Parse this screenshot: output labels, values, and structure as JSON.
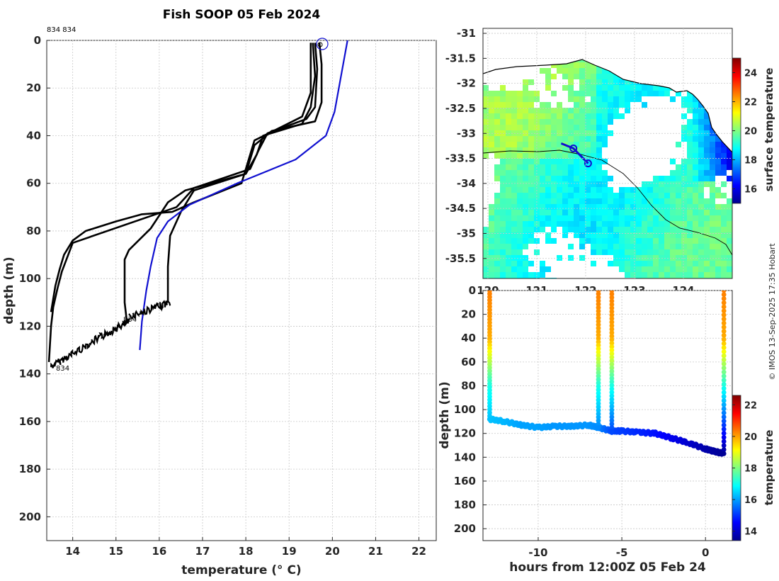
{
  "title": "Fish SOOP 05 Feb 2024",
  "copyright": "© IMOS 13-Sep-2025 17:35 Hobart",
  "profile_labels": [
    "834 834",
    "834",
    "834"
  ],
  "colors": {
    "profile": "#000000",
    "climatology": "#1010d0",
    "axis": "#262626",
    "grid": "#c8c8c8"
  },
  "chart_data": [
    {
      "type": "line",
      "name": "temperature-depth-profiles",
      "xlabel": "temperature (° C)",
      "ylabel": "depth (m)",
      "xlim": [
        13.4,
        22.4
      ],
      "ylim": [
        210,
        0
      ],
      "xticks": [
        "14",
        "15",
        "16",
        "17",
        "18",
        "19",
        "20",
        "21",
        "22"
      ],
      "yticks": [
        "0",
        "20",
        "40",
        "60",
        "80",
        "100",
        "120",
        "140",
        "160",
        "180",
        "200"
      ],
      "series": [
        {
          "name": "profile 1",
          "color": "#000000",
          "x": [
            19.6,
            19.65,
            19.6,
            19.4,
            18.5,
            18.3,
            18.1,
            16.8,
            16.6,
            16.4,
            14.0,
            13.75,
            13.65,
            13.6,
            13.55,
            13.5,
            13.45
          ],
          "y": [
            1,
            12,
            28,
            33,
            39,
            46,
            54,
            62,
            66,
            70,
            85,
            97,
            104,
            108,
            112,
            120,
            135
          ]
        },
        {
          "name": "profile 2",
          "color": "#000000",
          "x": [
            19.7,
            19.75,
            19.75,
            19.6,
            18.6,
            18.2,
            18.0,
            16.6,
            16.2,
            15.8,
            15.3,
            15.2,
            15.2,
            15.25
          ],
          "y": [
            1,
            10,
            26,
            34,
            38,
            44,
            56,
            63,
            68,
            79,
            88,
            92,
            110,
            118
          ]
        },
        {
          "name": "profile 3",
          "color": "#000000",
          "x": [
            19.55,
            19.6,
            19.5,
            19.3,
            18.4,
            18.25,
            18.0,
            16.8,
            16.5,
            16.25,
            16.2,
            16.2
          ],
          "y": [
            1,
            15,
            28,
            35,
            40,
            48,
            56,
            63,
            72,
            82,
            95,
            110
          ]
        },
        {
          "name": "profile 4",
          "color": "#000000",
          "x": [
            19.5,
            19.5,
            19.3,
            18.2,
            17.9,
            16.8,
            16.3,
            15.6,
            15.0,
            14.3,
            14.0,
            13.8,
            13.7,
            13.6,
            13.5
          ],
          "y": [
            1,
            22,
            32,
            42,
            60,
            68,
            72,
            73,
            76,
            80,
            84,
            90,
            96,
            103,
            114
          ]
        },
        {
          "name": "climatology",
          "color": "#1010d0",
          "x": [
            20.35,
            20.25,
            20.15,
            20.05,
            19.85,
            19.15,
            17.8,
            16.7,
            16.2,
            15.95,
            15.8,
            15.7,
            15.6,
            15.55
          ],
          "y": [
            0,
            10,
            20,
            30,
            40,
            50,
            60,
            69,
            76,
            83,
            95,
            105,
            118,
            130
          ]
        }
      ]
    },
    {
      "type": "heatmap",
      "name": "surface-temperature-map",
      "colorbar_label": "surface temperature",
      "clim": [
        15,
        25
      ],
      "xlim": [
        119.9,
        125.0
      ],
      "ylim": [
        -35.9,
        -30.9
      ],
      "xticks": [
        "120",
        "121",
        "122",
        "123",
        "124"
      ],
      "yticks": [
        "-31",
        "-31.5",
        "-32",
        "-32.5",
        "-33",
        "-33.5",
        "-34",
        "-34.5",
        "-35",
        "-35.5"
      ],
      "colorbar_ticks": [
        "16",
        "18",
        "20",
        "22",
        "24"
      ],
      "track": {
        "lon": [
          121.5,
          121.75,
          122.05
        ],
        "lat": [
          -33.2,
          -33.3,
          -33.6
        ]
      },
      "markers": [
        {
          "lon": 121.75,
          "lat": -33.3
        },
        {
          "lon": 122.05,
          "lat": -33.6
        }
      ]
    },
    {
      "type": "scatter",
      "name": "depth-time-section",
      "xlabel": "hours from 12:00Z 05 Feb 24",
      "ylabel": "depth (m)",
      "colorbar_label": "temperature",
      "clim": [
        13.4,
        22.6
      ],
      "xlim": [
        -13.3,
        1.6
      ],
      "ylim": [
        210,
        0
      ],
      "xticks": [
        "-10",
        "-5",
        "0"
      ],
      "yticks": [
        "0",
        "20",
        "40",
        "60",
        "80",
        "100",
        "120",
        "140",
        "160",
        "180",
        "200"
      ],
      "colorbar_ticks": [
        "14",
        "16",
        "18",
        "20",
        "22"
      ],
      "casts": [
        {
          "t": -12.9,
          "bottom": 108,
          "tbottom": 16.3
        },
        {
          "t": -6.4,
          "bottom": 115,
          "tbottom": 15.8
        },
        {
          "t": -5.6,
          "bottom": 118,
          "tbottom": 15.2
        },
        {
          "t": 1.1,
          "bottom": 137,
          "tbottom": 13.6
        }
      ],
      "bottom_track": {
        "t": [
          -12.9,
          -12,
          -11,
          -10,
          -9,
          -8,
          -7,
          -6.4,
          -5.6,
          -5,
          -4,
          -3,
          -2,
          -1,
          0,
          0.5,
          1.1
        ],
        "depth": [
          108,
          110,
          113,
          115,
          114,
          114,
          113,
          115,
          118,
          118,
          119,
          120,
          124,
          128,
          133,
          135,
          137
        ],
        "temp": [
          16.3,
          16.2,
          16.0,
          16.0,
          15.9,
          15.9,
          15.9,
          15.8,
          15.2,
          15.1,
          14.9,
          14.7,
          14.4,
          14.1,
          13.8,
          13.7,
          13.6
        ]
      }
    }
  ]
}
